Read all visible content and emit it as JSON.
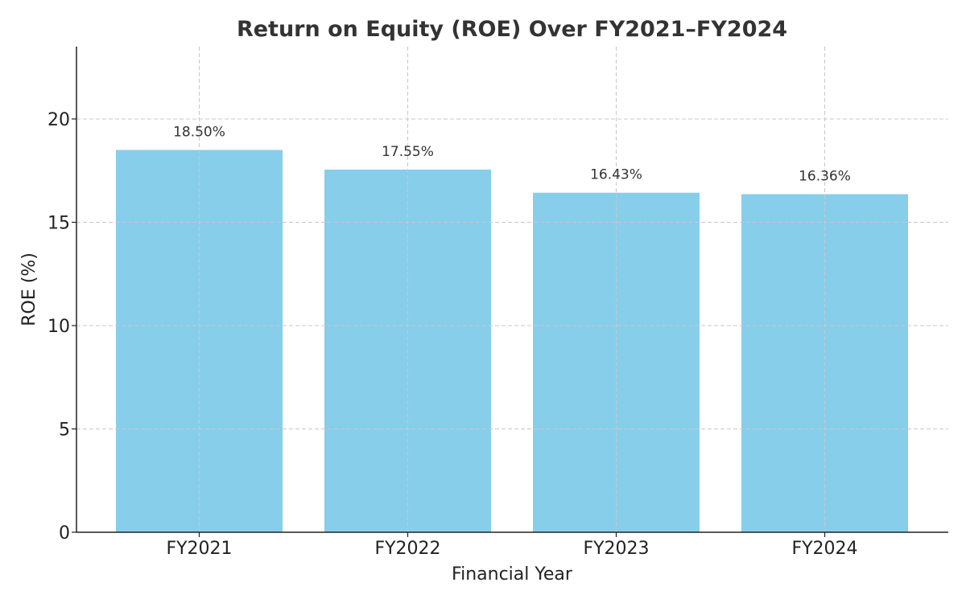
{
  "chart_data": {
    "type": "bar",
    "title": "Return on Equity (ROE) Over FY2021–FY2024",
    "xlabel": "Financial Year",
    "ylabel": "ROE (%)",
    "categories": [
      "FY2021",
      "FY2022",
      "FY2023",
      "FY2024"
    ],
    "values": [
      18.5,
      17.55,
      16.43,
      16.36
    ],
    "data_labels": [
      "18.50%",
      "17.55%",
      "16.43%",
      "16.36%"
    ],
    "yticks": [
      0,
      5,
      10,
      15,
      20
    ],
    "ylim": [
      0,
      23.5
    ],
    "grid": true,
    "bar_color": "#87CEEB"
  }
}
